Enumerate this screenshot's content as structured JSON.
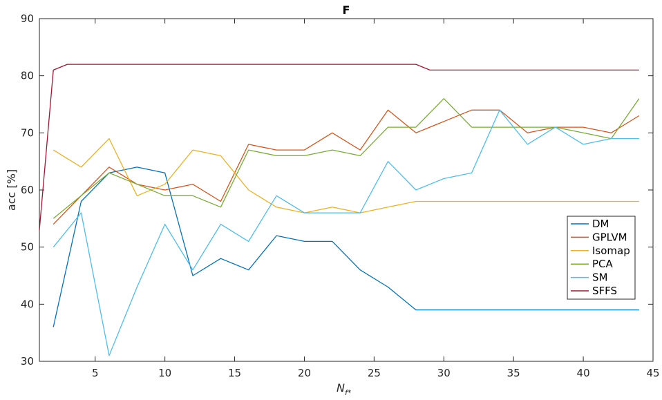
{
  "chart_data": {
    "type": "line",
    "title": "F",
    "xlabel_main": "N",
    "xlabel_sub": "f*",
    "ylabel": "acc [%]",
    "xlim": [
      1,
      45
    ],
    "ylim": [
      30,
      90
    ],
    "xticks": [
      5,
      10,
      15,
      20,
      25,
      30,
      35,
      40,
      45
    ],
    "yticks": [
      30,
      40,
      50,
      60,
      70,
      80,
      90
    ],
    "grid": false,
    "legend_position": "right",
    "series": [
      {
        "name": "DM",
        "color": "#0072BD",
        "x": [
          2,
          4,
          6,
          8,
          10,
          12,
          14,
          16,
          18,
          20,
          22,
          24,
          26,
          28,
          30,
          32,
          34,
          36,
          38,
          40,
          42,
          44
        ],
        "values": [
          36,
          58,
          63,
          64,
          63,
          45,
          48,
          46,
          52,
          51,
          51,
          46,
          43,
          39,
          39,
          39,
          39,
          39,
          39,
          39,
          39,
          39
        ]
      },
      {
        "name": "GPLVM",
        "color": "#D95319",
        "x": [
          2,
          4,
          6,
          8,
          10,
          12,
          14,
          16,
          18,
          20,
          22,
          24,
          26,
          28,
          30,
          32,
          34,
          36,
          38,
          40,
          42,
          44
        ],
        "values": [
          54,
          59,
          64,
          61,
          60,
          61,
          58,
          68,
          67,
          67,
          70,
          67,
          74,
          70,
          72,
          74,
          74,
          70,
          71,
          71,
          70,
          73
        ]
      },
      {
        "name": "Isomap",
        "color": "#EDB120",
        "x": [
          2,
          4,
          6,
          8,
          10,
          12,
          14,
          16,
          18,
          20,
          22,
          24,
          26,
          28,
          30,
          32,
          34,
          36,
          38,
          40,
          42,
          44
        ],
        "values": [
          67,
          64,
          69,
          59,
          61,
          67,
          66,
          60,
          57,
          56,
          57,
          56,
          57,
          58,
          58,
          58,
          58,
          58,
          58,
          58,
          58,
          58
        ]
      },
      {
        "name": "PCA",
        "color": "#77AC30",
        "x": [
          2,
          4,
          6,
          8,
          10,
          12,
          14,
          16,
          18,
          20,
          22,
          24,
          26,
          28,
          30,
          32,
          34,
          36,
          38,
          40,
          42,
          44
        ],
        "values": [
          55,
          59,
          63,
          61,
          59,
          59,
          57,
          67,
          66,
          66,
          67,
          66,
          71,
          71,
          76,
          71,
          71,
          71,
          71,
          70,
          69,
          76
        ]
      },
      {
        "name": "SM",
        "color": "#4DBEEE",
        "x": [
          2,
          4,
          6,
          8,
          10,
          12,
          14,
          16,
          18,
          20,
          22,
          24,
          26,
          28,
          30,
          32,
          34,
          36,
          38,
          40,
          42,
          44
        ],
        "values": [
          50,
          56,
          31,
          43,
          54,
          46,
          54,
          51,
          59,
          56,
          56,
          56,
          65,
          60,
          62,
          63,
          74,
          68,
          71,
          68,
          69,
          69
        ]
      },
      {
        "name": "SFFS",
        "color": "#A2142F",
        "x": [
          1,
          2,
          3,
          4,
          6,
          8,
          10,
          12,
          14,
          16,
          18,
          20,
          22,
          24,
          26,
          28,
          29,
          30,
          32,
          34,
          36,
          38,
          40,
          42,
          44
        ],
        "values": [
          53,
          81,
          82,
          82,
          82,
          82,
          82,
          82,
          82,
          82,
          82,
          82,
          82,
          82,
          82,
          82,
          81,
          81,
          81,
          81,
          81,
          81,
          81,
          81,
          81
        ]
      }
    ]
  }
}
